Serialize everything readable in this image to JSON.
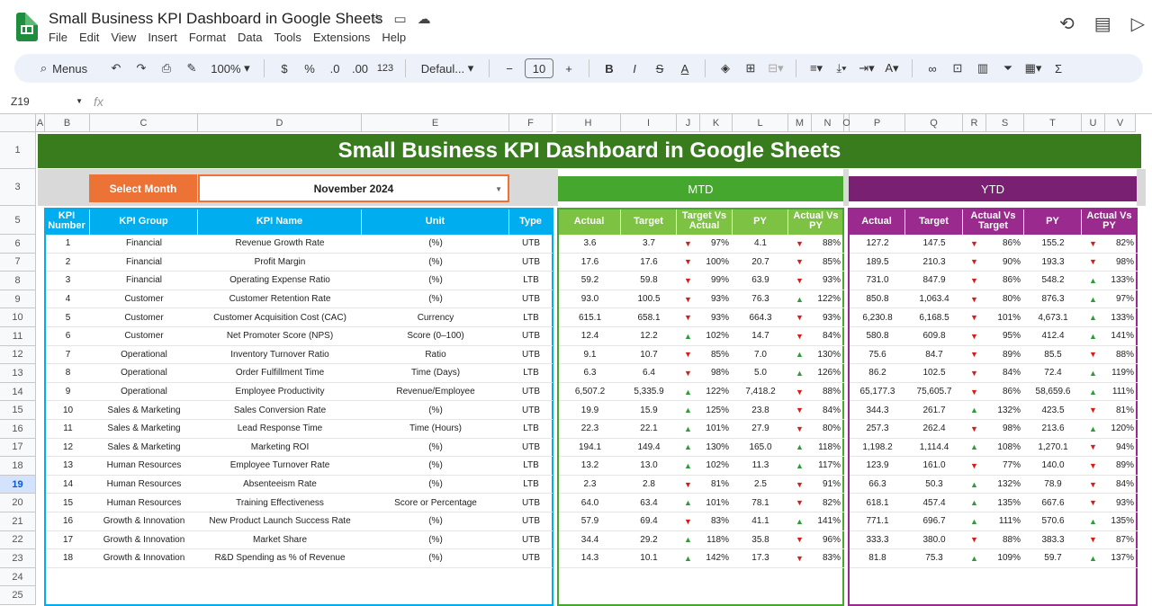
{
  "app": {
    "doc_title": "Small Business KPI Dashboard in Google Sheets",
    "menu": [
      "File",
      "Edit",
      "View",
      "Insert",
      "Format",
      "Data",
      "Tools",
      "Extensions",
      "Help"
    ]
  },
  "toolbar": {
    "search": "Menus",
    "zoom": "100%",
    "currency": "$",
    "percent": "%",
    "dec_less": ".0",
    "dec_more": ".00",
    "format_123": "123",
    "font": "Defaul...",
    "font_size": "10"
  },
  "formula": {
    "cell": "Z19",
    "fx": "fx"
  },
  "columns": [
    "A",
    "B",
    "C",
    "D",
    "E",
    "F",
    "H",
    "I",
    "J",
    "K",
    "L",
    "M",
    "N",
    "O",
    "P",
    "Q",
    "R",
    "S",
    "T",
    "U",
    "V"
  ],
  "sheet": {
    "title": "Small Business KPI Dashboard in Google Sheets",
    "select_month_label": "Select Month",
    "month": "November 2024",
    "mtd": "MTD",
    "ytd": "YTD",
    "headers": {
      "num": "KPI Number",
      "group": "KPI Group",
      "name": "KPI Name",
      "unit": "Unit",
      "type": "Type",
      "actual": "Actual",
      "target": "Target",
      "tva": "Target Vs Actual",
      "py": "PY",
      "avp": "Actual Vs PY",
      "y_actual": "Actual",
      "y_target": "Target",
      "y_avt": "Actual Vs Target",
      "y_py": "PY",
      "y_avp": "Actual Vs PY"
    },
    "rows": [
      {
        "n": "1",
        "g": "Financial",
        "k": "Revenue Growth Rate",
        "u": "(%)",
        "t": "UTB",
        "ma": "3.6",
        "mt": "3.7",
        "mtd": "d",
        "mtv": "97%",
        "mp": "4.1",
        "mpd": "d",
        "mpv": "88%",
        "ya": "127.2",
        "yt": "147.5",
        "ytd": "d",
        "ytv": "86%",
        "yp": "155.2",
        "ypd": "d",
        "ypv": "82%"
      },
      {
        "n": "2",
        "g": "Financial",
        "k": "Profit Margin",
        "u": "(%)",
        "t": "UTB",
        "ma": "17.6",
        "mt": "17.6",
        "mtd": "d",
        "mtv": "100%",
        "mp": "20.7",
        "mpd": "d",
        "mpv": "85%",
        "ya": "189.5",
        "yt": "210.3",
        "ytd": "d",
        "ytv": "90%",
        "yp": "193.3",
        "ypd": "d",
        "ypv": "98%"
      },
      {
        "n": "3",
        "g": "Financial",
        "k": "Operating Expense Ratio",
        "u": "(%)",
        "t": "LTB",
        "ma": "59.2",
        "mt": "59.8",
        "mtd": "d",
        "mtv": "99%",
        "mp": "63.9",
        "mpd": "d",
        "mpv": "93%",
        "ya": "731.0",
        "yt": "847.9",
        "ytd": "d",
        "ytv": "86%",
        "yp": "548.2",
        "ypd": "u",
        "ypv": "133%"
      },
      {
        "n": "4",
        "g": "Customer",
        "k": "Customer Retention Rate",
        "u": "(%)",
        "t": "UTB",
        "ma": "93.0",
        "mt": "100.5",
        "mtd": "d",
        "mtv": "93%",
        "mp": "76.3",
        "mpd": "u",
        "mpv": "122%",
        "ya": "850.8",
        "yt": "1,063.4",
        "ytd": "d",
        "ytv": "80%",
        "yp": "876.3",
        "ypd": "u",
        "ypv": "97%"
      },
      {
        "n": "5",
        "g": "Customer",
        "k": "Customer Acquisition Cost (CAC)",
        "u": "Currency",
        "t": "LTB",
        "ma": "615.1",
        "mt": "658.1",
        "mtd": "d",
        "mtv": "93%",
        "mp": "664.3",
        "mpd": "d",
        "mpv": "93%",
        "ya": "6,230.8",
        "yt": "6,168.5",
        "ytd": "d",
        "ytv": "101%",
        "yp": "4,673.1",
        "ypd": "u",
        "ypv": "133%"
      },
      {
        "n": "6",
        "g": "Customer",
        "k": "Net Promoter Score (NPS)",
        "u": "Score (0–100)",
        "t": "UTB",
        "ma": "12.4",
        "mt": "12.2",
        "mtd": "u",
        "mtv": "102%",
        "mp": "14.7",
        "mpd": "d",
        "mpv": "84%",
        "ya": "580.8",
        "yt": "609.8",
        "ytd": "d",
        "ytv": "95%",
        "yp": "412.4",
        "ypd": "u",
        "ypv": "141%"
      },
      {
        "n": "7",
        "g": "Operational",
        "k": "Inventory Turnover Ratio",
        "u": "Ratio",
        "t": "UTB",
        "ma": "9.1",
        "mt": "10.7",
        "mtd": "d",
        "mtv": "85%",
        "mp": "7.0",
        "mpd": "u",
        "mpv": "130%",
        "ya": "75.6",
        "yt": "84.7",
        "ytd": "d",
        "ytv": "89%",
        "yp": "85.5",
        "ypd": "d",
        "ypv": "88%"
      },
      {
        "n": "8",
        "g": "Operational",
        "k": "Order Fulfillment Time",
        "u": "Time (Days)",
        "t": "LTB",
        "ma": "6.3",
        "mt": "6.4",
        "mtd": "d",
        "mtv": "98%",
        "mp": "5.0",
        "mpd": "u",
        "mpv": "126%",
        "ya": "86.2",
        "yt": "102.5",
        "ytd": "d",
        "ytv": "84%",
        "yp": "72.4",
        "ypd": "u",
        "ypv": "119%"
      },
      {
        "n": "9",
        "g": "Operational",
        "k": "Employee Productivity",
        "u": "Revenue/Employee",
        "t": "UTB",
        "ma": "6,507.2",
        "mt": "5,335.9",
        "mtd": "u",
        "mtv": "122%",
        "mp": "7,418.2",
        "mpd": "d",
        "mpv": "88%",
        "ya": "65,177.3",
        "yt": "75,605.7",
        "ytd": "d",
        "ytv": "86%",
        "yp": "58,659.6",
        "ypd": "u",
        "ypv": "111%"
      },
      {
        "n": "10",
        "g": "Sales & Marketing",
        "k": "Sales Conversion Rate",
        "u": "(%)",
        "t": "UTB",
        "ma": "19.9",
        "mt": "15.9",
        "mtd": "u",
        "mtv": "125%",
        "mp": "23.8",
        "mpd": "d",
        "mpv": "84%",
        "ya": "344.3",
        "yt": "261.7",
        "ytd": "u",
        "ytv": "132%",
        "yp": "423.5",
        "ypd": "d",
        "ypv": "81%"
      },
      {
        "n": "11",
        "g": "Sales & Marketing",
        "k": "Lead Response Time",
        "u": "Time (Hours)",
        "t": "LTB",
        "ma": "22.3",
        "mt": "22.1",
        "mtd": "u",
        "mtv": "101%",
        "mp": "27.9",
        "mpd": "d",
        "mpv": "80%",
        "ya": "257.3",
        "yt": "262.4",
        "ytd": "d",
        "ytv": "98%",
        "yp": "213.6",
        "ypd": "u",
        "ypv": "120%"
      },
      {
        "n": "12",
        "g": "Sales & Marketing",
        "k": "Marketing ROI",
        "u": "(%)",
        "t": "UTB",
        "ma": "194.1",
        "mt": "149.4",
        "mtd": "u",
        "mtv": "130%",
        "mp": "165.0",
        "mpd": "u",
        "mpv": "118%",
        "ya": "1,198.2",
        "yt": "1,114.4",
        "ytd": "u",
        "ytv": "108%",
        "yp": "1,270.1",
        "ypd": "d",
        "ypv": "94%"
      },
      {
        "n": "13",
        "g": "Human Resources",
        "k": "Employee Turnover Rate",
        "u": "(%)",
        "t": "LTB",
        "ma": "13.2",
        "mt": "13.0",
        "mtd": "u",
        "mtv": "102%",
        "mp": "11.3",
        "mpd": "u",
        "mpv": "117%",
        "ya": "123.9",
        "yt": "161.0",
        "ytd": "d",
        "ytv": "77%",
        "yp": "140.0",
        "ypd": "d",
        "ypv": "89%"
      },
      {
        "n": "14",
        "g": "Human Resources",
        "k": "Absenteeism Rate",
        "u": "(%)",
        "t": "LTB",
        "ma": "2.3",
        "mt": "2.8",
        "mtd": "d",
        "mtv": "81%",
        "mp": "2.5",
        "mpd": "d",
        "mpv": "91%",
        "ya": "66.3",
        "yt": "50.3",
        "ytd": "u",
        "ytv": "132%",
        "yp": "78.9",
        "ypd": "d",
        "ypv": "84%"
      },
      {
        "n": "15",
        "g": "Human Resources",
        "k": "Training Effectiveness",
        "u": "Score or Percentage",
        "t": "UTB",
        "ma": "64.0",
        "mt": "63.4",
        "mtd": "u",
        "mtv": "101%",
        "mp": "78.1",
        "mpd": "d",
        "mpv": "82%",
        "ya": "618.1",
        "yt": "457.4",
        "ytd": "u",
        "ytv": "135%",
        "yp": "667.6",
        "ypd": "d",
        "ypv": "93%"
      },
      {
        "n": "16",
        "g": "Growth & Innovation",
        "k": "New Product Launch Success Rate",
        "u": "(%)",
        "t": "UTB",
        "ma": "57.9",
        "mt": "69.4",
        "mtd": "d",
        "mtv": "83%",
        "mp": "41.1",
        "mpd": "u",
        "mpv": "141%",
        "ya": "771.1",
        "yt": "696.7",
        "ytd": "u",
        "ytv": "111%",
        "yp": "570.6",
        "ypd": "u",
        "ypv": "135%"
      },
      {
        "n": "17",
        "g": "Growth & Innovation",
        "k": "Market Share",
        "u": "(%)",
        "t": "UTB",
        "ma": "34.4",
        "mt": "29.2",
        "mtd": "u",
        "mtv": "118%",
        "mp": "35.8",
        "mpd": "d",
        "mpv": "96%",
        "ya": "333.3",
        "yt": "380.0",
        "ytd": "d",
        "ytv": "88%",
        "yp": "383.3",
        "ypd": "d",
        "ypv": "87%"
      },
      {
        "n": "18",
        "g": "Growth & Innovation",
        "k": "R&D Spending as % of Revenue",
        "u": "(%)",
        "t": "UTB",
        "ma": "14.3",
        "mt": "10.1",
        "mtd": "u",
        "mtv": "142%",
        "mp": "17.3",
        "mpd": "d",
        "mpv": "83%",
        "ya": "81.8",
        "yt": "75.3",
        "ytd": "u",
        "ytv": "109%",
        "yp": "59.7",
        "ypd": "u",
        "ypv": "137%"
      }
    ]
  },
  "row_numbers": [
    "1",
    "3",
    "5",
    "6",
    "7",
    "8",
    "9",
    "10",
    "11",
    "12",
    "13",
    "14",
    "15",
    "16",
    "17",
    "18",
    "19",
    "20",
    "21",
    "22",
    "23",
    "24",
    "25"
  ],
  "selected_row": "19",
  "colors": {
    "green": "#387c1e",
    "mtd": "#46a72f",
    "mtd_hdr": "#7dc242",
    "ytd": "#7a2072",
    "ytd_hdr": "#9b2a8e",
    "blue": "#00aeef",
    "orange": "#ec7235"
  }
}
